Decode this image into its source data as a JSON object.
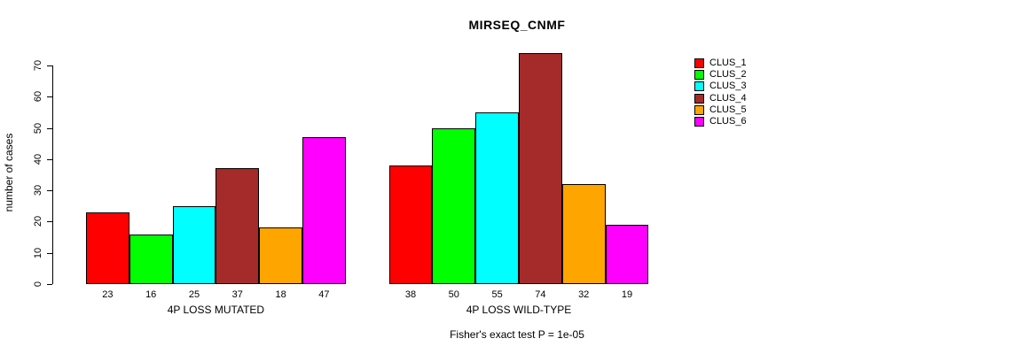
{
  "chart_data": {
    "type": "bar",
    "title": "MIRSEQ_CNMF",
    "ylabel": "number of cases",
    "xlabel": "",
    "caption": "Fisher's exact test P = 1e-05",
    "y_ticks": [
      0,
      10,
      20,
      30,
      40,
      50,
      60,
      70
    ],
    "ylim": [
      0,
      74
    ],
    "grid": false,
    "legend_position": "right",
    "bar_borders": true,
    "value_labels_shown": true,
    "groups": [
      {
        "label": "4P LOSS MUTATED",
        "values": [
          23,
          16,
          25,
          37,
          18,
          47
        ]
      },
      {
        "label": "4P LOSS WILD-TYPE",
        "values": [
          38,
          50,
          55,
          74,
          32,
          19
        ]
      }
    ],
    "series": [
      {
        "name": "CLUS_1",
        "color": "#FF0000"
      },
      {
        "name": "CLUS_2",
        "color": "#00FF00"
      },
      {
        "name": "CLUS_3",
        "color": "#00FFFF"
      },
      {
        "name": "CLUS_4",
        "color": "#A52A2A"
      },
      {
        "name": "CLUS_5",
        "color": "#FFA500"
      },
      {
        "name": "CLUS_6",
        "color": "#FF00FF"
      }
    ]
  }
}
